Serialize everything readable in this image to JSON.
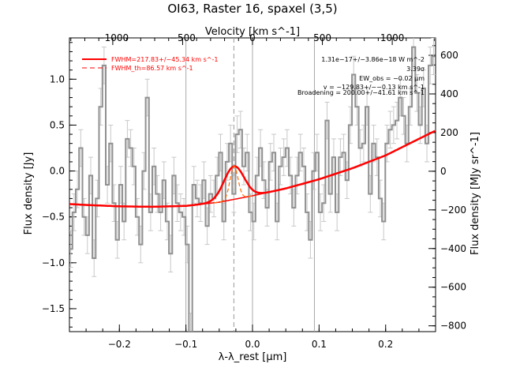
{
  "chart_data": {
    "type": "line",
    "title": "OI63, Raster 16, spaxel (3,5)",
    "xlabel": "λ-λ_rest [μm]",
    "ylabel_left": "Flux density [Jy]",
    "ylabel_right": "Flux density [MJy sr^-1]",
    "top_axis_label": "Velocity [km s^-1]",
    "xlim": [
      -0.275,
      0.275
    ],
    "ylim": [
      -1.75,
      1.45
    ],
    "right_ylim": [
      -830,
      690
    ],
    "top_xlim": [
      -1310,
      1310
    ],
    "x_ticks": [
      -0.2,
      -0.1,
      0.0,
      0.1,
      0.2
    ],
    "x_tick_labels": [
      "−0.2",
      "−0.1",
      "0.0",
      "0.1",
      "0.2"
    ],
    "y_ticks": [
      1.0,
      0.5,
      0.0,
      -0.5,
      -1.0,
      -1.5
    ],
    "y_tick_labels": [
      "1.0",
      "0.5",
      "0.0",
      "−0.5",
      "−1.0",
      "−1.5"
    ],
    "right_ticks": [
      600,
      400,
      200,
      0,
      -200,
      -400,
      -600,
      -800
    ],
    "right_tick_labels": [
      "600",
      "400",
      "200",
      "0",
      "−200",
      "−400",
      "−600",
      "−800"
    ],
    "top_ticks": [
      -1000,
      -500,
      0,
      500,
      1000
    ],
    "top_tick_labels": [
      "−1000",
      "−500",
      "0",
      "500",
      "1000"
    ],
    "vertical_lines": [
      {
        "x": -0.1,
        "style": "solid"
      },
      {
        "x": 0.0,
        "style": "solid"
      },
      {
        "x": 0.093,
        "style": "solid"
      },
      {
        "x": -0.028,
        "style": "dashed"
      }
    ],
    "legend": [
      {
        "label": "FWHM=217.83+/−45.34 km s^-1",
        "color": "#ff0000",
        "style": "solid"
      },
      {
        "label": "FWHM_th=86.57 km s^-1",
        "color": "#ff0000",
        "style": "dashed"
      }
    ],
    "annotations": [
      "1.31e−17+/−3.86e−18 W m^-2",
      "3.39σ",
      "EW_obs = −0.02 μm",
      "v = −129.83+/−−0.13 km s^-1",
      "Broadening = 200.00+/−41.61 km s^-1"
    ],
    "series": [
      {
        "kind": "data",
        "color": "#909090",
        "x": [
          -0.273,
          -0.268,
          -0.263,
          -0.258,
          -0.253,
          -0.248,
          -0.243,
          -0.238,
          -0.233,
          -0.228,
          -0.223,
          -0.218,
          -0.213,
          -0.208,
          -0.203,
          -0.198,
          -0.193,
          -0.188,
          -0.183,
          -0.178,
          -0.173,
          -0.168,
          -0.163,
          -0.158,
          -0.153,
          -0.148,
          -0.143,
          -0.138,
          -0.133,
          -0.128,
          -0.123,
          -0.118,
          -0.113,
          -0.108,
          -0.103,
          -0.098,
          -0.093,
          -0.088,
          -0.083,
          -0.078,
          -0.073,
          -0.068,
          -0.063,
          -0.058,
          -0.053,
          -0.048,
          -0.043,
          -0.038,
          -0.033,
          -0.028,
          -0.023,
          -0.018,
          -0.013,
          -0.008,
          -0.003,
          0.002,
          0.007,
          0.012,
          0.017,
          0.022,
          0.027,
          0.032,
          0.037,
          0.042,
          0.047,
          0.052,
          0.057,
          0.062,
          0.067,
          0.072,
          0.077,
          0.082,
          0.087,
          0.092,
          0.097,
          0.102,
          0.107,
          0.112,
          0.117,
          0.122,
          0.127,
          0.132,
          0.137,
          0.142,
          0.147,
          0.152,
          0.157,
          0.162,
          0.167,
          0.172,
          0.177,
          0.182,
          0.187,
          0.192,
          0.197,
          0.202,
          0.207,
          0.212,
          0.217,
          0.222,
          0.227,
          0.232,
          0.237,
          0.242,
          0.247,
          0.252,
          0.257,
          0.262,
          0.267,
          0.272
        ],
        "y": [
          -0.85,
          -0.45,
          -0.2,
          0.25,
          -0.5,
          -0.7,
          -0.05,
          -0.95,
          -0.3,
          0.7,
          1.15,
          -0.15,
          0.3,
          -0.35,
          -0.75,
          -0.15,
          -0.55,
          0.35,
          0.25,
          0.05,
          -0.5,
          -0.8,
          0.0,
          0.8,
          -0.45,
          0.05,
          -0.25,
          -0.45,
          -0.1,
          -0.55,
          -0.9,
          -0.05,
          -0.35,
          -0.45,
          -0.5,
          -0.8,
          -1.75,
          -0.15,
          -0.3,
          -0.35,
          -0.1,
          -0.6,
          -0.25,
          -0.3,
          -0.05,
          0.2,
          -0.55,
          0.1,
          0.3,
          -0.25,
          0.4,
          0.45,
          0.05,
          0.2,
          -0.45,
          -0.55,
          -0.05,
          0.25,
          -0.1,
          -0.4,
          0.1,
          0.2,
          -0.55,
          0.05,
          0.15,
          0.25,
          -0.05,
          -0.4,
          -0.05,
          0.2,
          0.05,
          -0.45,
          -0.75,
          0.0,
          0.2,
          -0.45,
          -0.35,
          0.55,
          -0.25,
          0.15,
          -0.45,
          0.15,
          0.2,
          -0.1,
          0.5,
          1.05,
          0.7,
          0.25,
          0.3,
          0.7,
          -0.25,
          0.3,
          0.15,
          -0.3,
          -0.55,
          0.3,
          0.45,
          0.5,
          0.55,
          0.8,
          0.6,
          0.3,
          0.7,
          1.35,
          0.85,
          0.5,
          0.9,
          0.3,
          1.15,
          1.25
        ],
        "err": 0.2
      },
      {
        "kind": "baseline_fit",
        "color": "#ff0000",
        "x": [
          -0.275,
          -0.25,
          -0.2,
          -0.15,
          -0.1,
          -0.05,
          0.0,
          0.05,
          0.1,
          0.15,
          0.2,
          0.25,
          0.275
        ],
        "y": [
          -0.36,
          -0.37,
          -0.385,
          -0.39,
          -0.38,
          -0.34,
          -0.27,
          -0.19,
          -0.09,
          0.03,
          0.17,
          0.35,
          0.44
        ]
      },
      {
        "kind": "gaussian_fit",
        "color": "#ff0000",
        "center": -0.0278,
        "sigma": 0.0151,
        "amplitude": 0.36
      },
      {
        "kind": "thermal_width_profile",
        "color": "#ff6a00",
        "style": "dashed",
        "center": -0.0278,
        "sigma": 0.006,
        "amplitude": 0.36
      }
    ]
  }
}
